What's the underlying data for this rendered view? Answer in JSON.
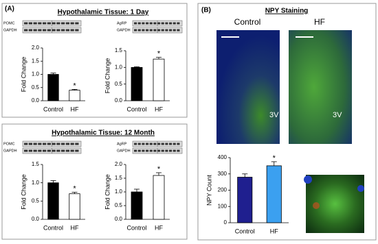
{
  "panel_a": {
    "label": "(A)",
    "sections": [
      {
        "title": "Hypothalamic Tissue: 1 Day",
        "blots": [
          [
            "POMC",
            "GAPDH"
          ],
          [
            "AgRP",
            "GAPDH"
          ]
        ]
      },
      {
        "title": "Hypothalamic Tissue: 12 Month",
        "blots": [
          [
            "POMC",
            "GAPDH"
          ],
          [
            "AgRP",
            "GAPDH"
          ]
        ]
      }
    ]
  },
  "panel_b": {
    "label": "(B)",
    "title": "NPY Staining",
    "images": [
      {
        "label": "Control",
        "marker": "3V"
      },
      {
        "label": "HF",
        "marker": "3V"
      }
    ]
  },
  "chart_data": [
    {
      "type": "bar",
      "ylabel": "Fold Change",
      "categories": [
        "Control",
        "HF"
      ],
      "values": [
        1.0,
        0.4
      ],
      "errors": [
        0.05,
        0.03
      ],
      "colors": [
        "#000000",
        "#ffffff"
      ],
      "significance": [
        null,
        "*"
      ],
      "ylim": [
        0,
        2
      ],
      "yticks": [
        {
          "value": 0,
          "label": "0.0"
        },
        0.5,
        {
          "value": 1,
          "label": "1.0"
        },
        1.5,
        {
          "value": 2,
          "label": "2.0"
        }
      ]
    },
    {
      "type": "bar",
      "ylabel": "Fold Change",
      "categories": [
        "Control",
        "HF"
      ],
      "values": [
        1.0,
        1.25
      ],
      "errors": [
        0.02,
        0.05
      ],
      "colors": [
        "#000000",
        "#ffffff"
      ],
      "significance": [
        null,
        "*"
      ],
      "ylim": [
        0,
        1.5
      ],
      "yticks": [
        {
          "value": 0,
          "label": "0.0"
        },
        0.5,
        {
          "value": 1,
          "label": "1.0"
        },
        1.5
      ]
    },
    {
      "type": "bar",
      "ylabel": "Fold Change",
      "categories": [
        "Control",
        "HF"
      ],
      "values": [
        1.0,
        0.7
      ],
      "errors": [
        0.06,
        0.04
      ],
      "colors": [
        "#000000",
        "#ffffff"
      ],
      "significance": [
        null,
        "*"
      ],
      "ylim": [
        0,
        1.5
      ],
      "yticks": [
        {
          "value": 0,
          "label": "0.0"
        },
        0.5,
        {
          "value": 1,
          "label": "1.0"
        },
        1.5
      ]
    },
    {
      "type": "bar",
      "ylabel": "Fold Change",
      "categories": [
        "Control",
        "HF"
      ],
      "values": [
        1.0,
        1.6
      ],
      "errors": [
        0.1,
        0.1
      ],
      "colors": [
        "#000000",
        "#ffffff"
      ],
      "significance": [
        null,
        "*"
      ],
      "ylim": [
        0,
        2
      ],
      "yticks": [
        {
          "value": 0,
          "label": "0.0"
        },
        0.5,
        {
          "value": 1,
          "label": "1.0"
        },
        1.5,
        {
          "value": 2,
          "label": "2.0"
        }
      ]
    },
    {
      "type": "bar",
      "ylabel": "NPY Count",
      "categories": [
        "Control",
        "HF"
      ],
      "values": [
        280,
        350
      ],
      "errors": [
        20,
        25
      ],
      "colors": [
        "#1f1f8f",
        "#3ba0f0"
      ],
      "significance": [
        null,
        "*"
      ],
      "ylim": [
        0,
        400
      ],
      "yticks": [
        0,
        100,
        200,
        300,
        400
      ]
    }
  ]
}
